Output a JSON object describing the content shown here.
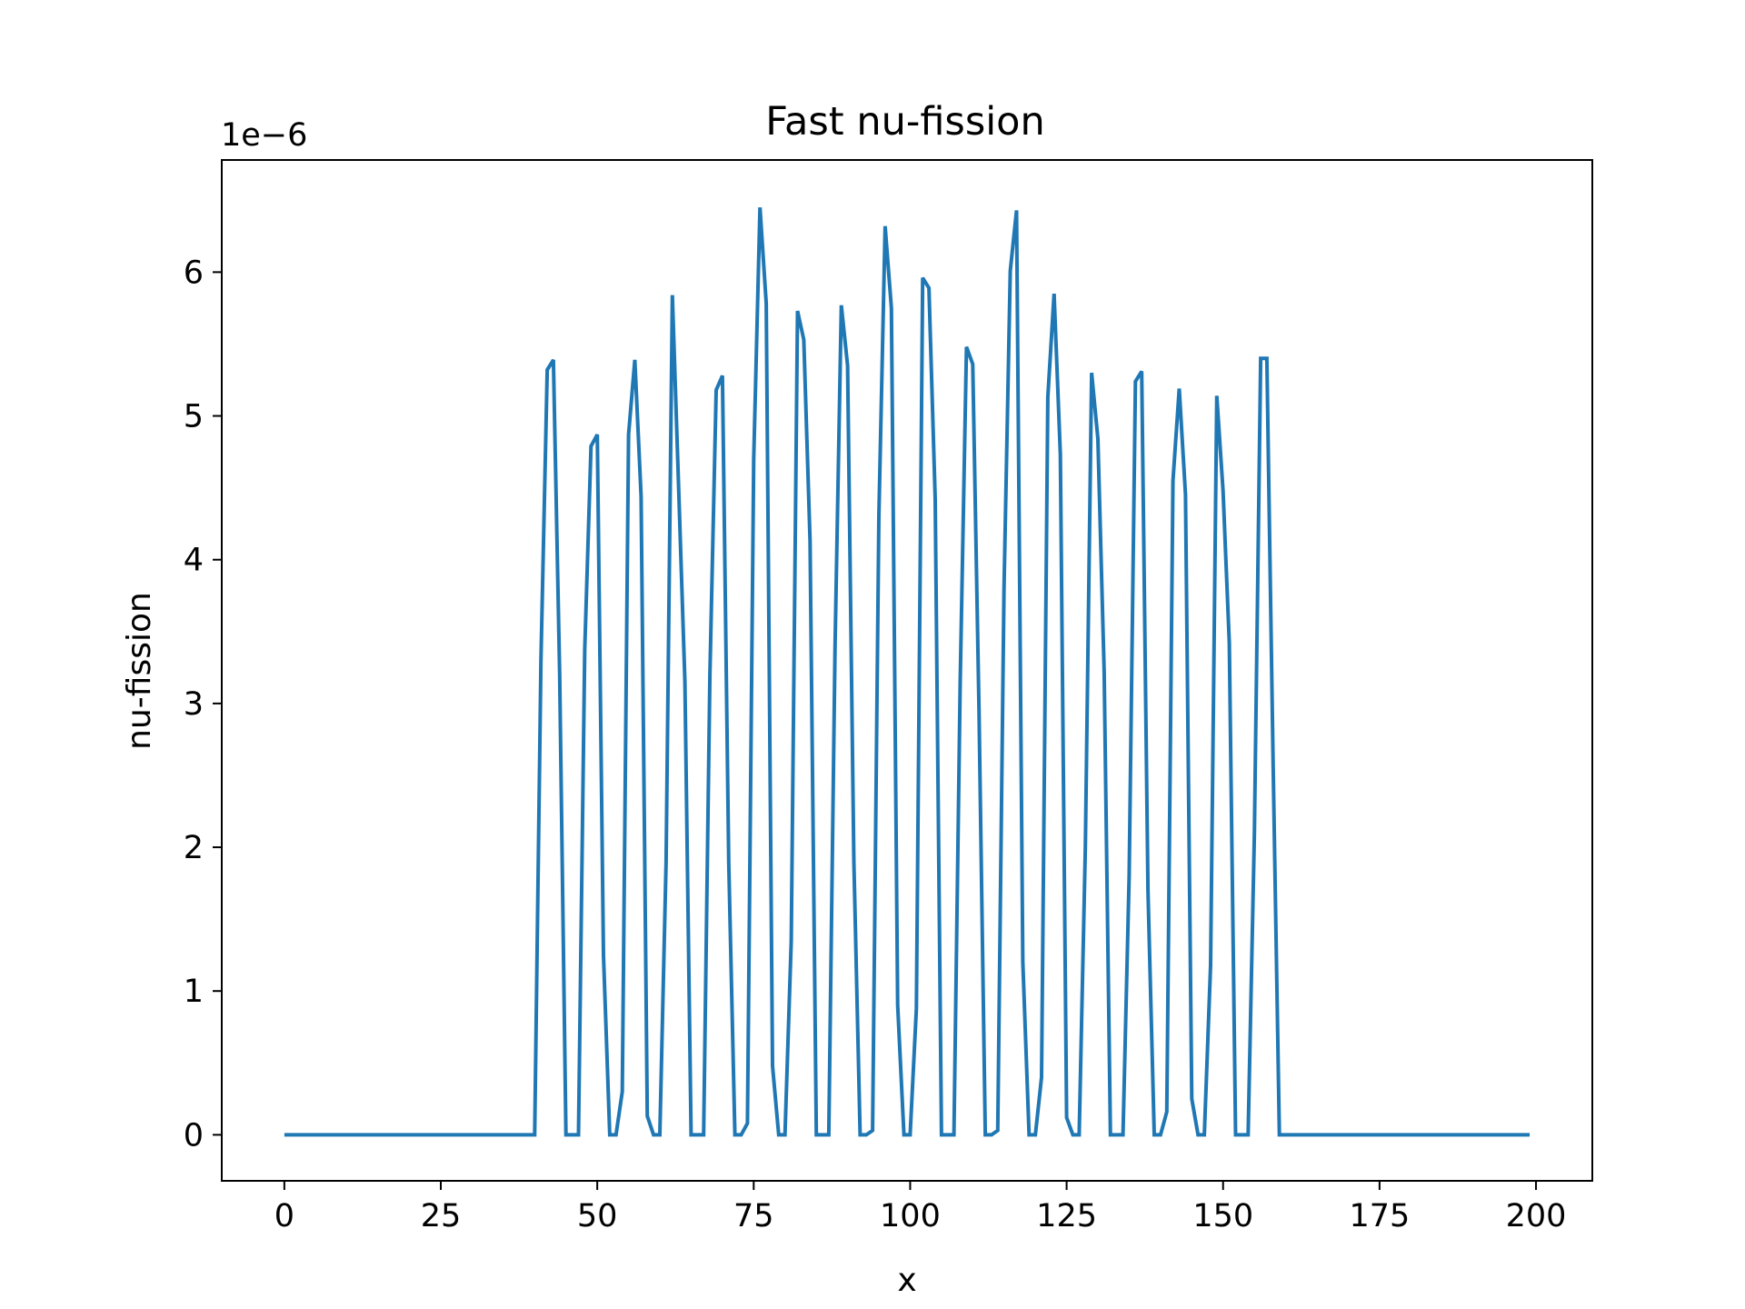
{
  "chart_data": {
    "type": "line",
    "title": "Fast nu-fission",
    "xlabel": "x",
    "ylabel": "nu-fission",
    "y_offset_label": "1e−6",
    "y_scale": 1e-06,
    "xlim": [
      -10,
      209
    ],
    "ylim": [
      -0.32,
      6.78
    ],
    "x_ticks": [
      0,
      25,
      50,
      75,
      100,
      125,
      150,
      175,
      200
    ],
    "y_ticks": [
      0,
      1,
      2,
      3,
      4,
      5,
      6
    ],
    "grid": false,
    "series": [
      {
        "color": "#1f77b4",
        "x": [
          0,
          40,
          41,
          42,
          43,
          44,
          45,
          46,
          47,
          48,
          49,
          50,
          51,
          52,
          53,
          54,
          55,
          56,
          57,
          58,
          59,
          60,
          61,
          62,
          63,
          64,
          65,
          66,
          67,
          68,
          69,
          70,
          71,
          72,
          73,
          74,
          75,
          76,
          77,
          78,
          79,
          80,
          81,
          82,
          83,
          84,
          85,
          86,
          87,
          88,
          89,
          90,
          91,
          92,
          93,
          94,
          95,
          96,
          97,
          98,
          99,
          100,
          101,
          102,
          103,
          104,
          105,
          106,
          107,
          108,
          109,
          110,
          111,
          112,
          113,
          114,
          115,
          116,
          117,
          118,
          119,
          120,
          121,
          122,
          123,
          124,
          125,
          126,
          127,
          128,
          129,
          130,
          131,
          132,
          133,
          134,
          135,
          136,
          137,
          138,
          139,
          140,
          141,
          142,
          143,
          144,
          145,
          146,
          147,
          148,
          149,
          150,
          151,
          152,
          153,
          154,
          155,
          156,
          157,
          158,
          159,
          199
        ],
        "values": [
          0,
          0,
          3.3,
          5.32,
          5.39,
          3.2,
          0,
          0,
          0,
          3.38,
          4.79,
          4.87,
          1.25,
          0,
          0,
          0.3,
          4.87,
          5.39,
          4.44,
          0.13,
          0,
          0,
          1.9,
          5.84,
          4.5,
          3.15,
          0,
          0,
          0,
          3.2,
          5.18,
          5.28,
          1.9,
          0,
          0,
          0.08,
          4.7,
          6.45,
          5.78,
          0.48,
          0,
          0,
          1.35,
          5.73,
          5.53,
          4.13,
          0,
          0,
          0,
          3.4,
          5.77,
          5.35,
          1.9,
          0,
          0,
          0.03,
          4.3,
          6.32,
          5.75,
          0.9,
          0,
          0,
          0.88,
          5.96,
          5.89,
          4.42,
          0,
          0,
          0,
          3.15,
          5.48,
          5.36,
          2.95,
          0,
          0,
          0.03,
          3.8,
          6.01,
          6.43,
          1.2,
          0,
          0,
          0.4,
          5.13,
          5.85,
          4.73,
          0.12,
          0,
          0,
          2,
          5.3,
          4.84,
          3.22,
          0,
          0,
          0,
          1.8,
          5.24,
          5.31,
          1.7,
          0,
          0,
          0.16,
          4.55,
          5.19,
          4.45,
          0.25,
          0,
          0,
          1.18,
          5.14,
          4.48,
          3.42,
          0,
          0,
          0,
          2.1,
          5.4,
          5.4,
          2.58,
          0,
          0
        ]
      }
    ]
  }
}
